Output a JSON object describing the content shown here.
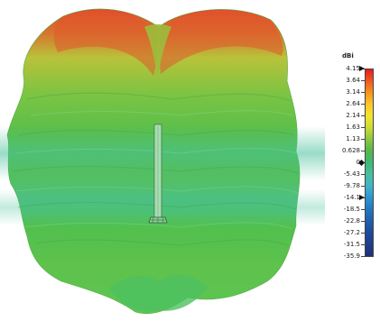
{
  "legend": {
    "unit": "dBi",
    "ticks": [
      "4.15",
      "3.64",
      "3.14",
      "2.64",
      "2.14",
      "1.63",
      "1.13",
      "0.628",
      "0",
      "-5.43",
      "-9.78",
      "-14.1",
      "-18.5",
      "-22.8",
      "-27.2",
      "-31.5",
      "-35.9"
    ],
    "gradient_colors": [
      "#e8191d",
      "#f05a22",
      "#f7941d",
      "#fbc72a",
      "#f2e62e",
      "#c9dc33",
      "#8cc63f",
      "#55b848",
      "#3cb878",
      "#47bfa0",
      "#3fb5c9",
      "#2b95d2",
      "#2277c2",
      "#1f5fae",
      "#1d4b9a",
      "#213d8a",
      "#1f2f78"
    ],
    "markers": [
      {
        "type": "arrow",
        "value": "4.15"
      },
      {
        "type": "diamond",
        "value": "0"
      },
      {
        "type": "arrow",
        "value": "-14.1"
      }
    ]
  },
  "scene": {
    "pattern_colors": {
      "top": "#d9452b",
      "upper": "#b4c23a",
      "mid": "#5bbf4a",
      "band": "#4cc28e",
      "bottom": "#46bd58"
    },
    "antenna_color": "#9fd7a8"
  }
}
